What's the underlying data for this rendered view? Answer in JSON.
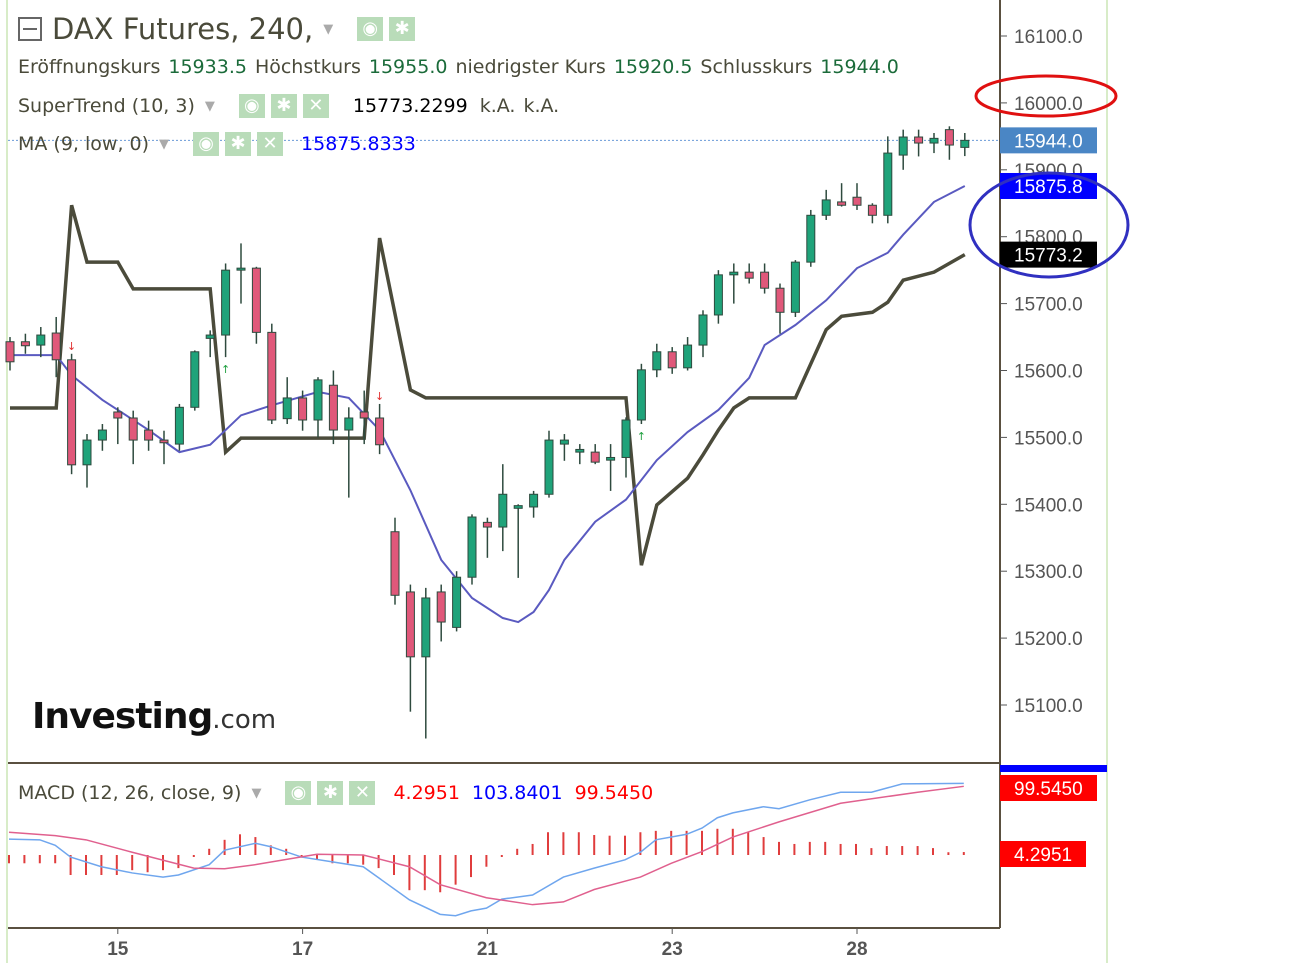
{
  "header": {
    "title": "DAX Futures, 240,",
    "ohlc": {
      "open_label": "Eröffnungskurs",
      "open": "15933.5",
      "high_label": "Höchstkurs",
      "high": "15955.0",
      "low_label": "niedrigster Kurs",
      "low": "15920.5",
      "close_label": "Schlusskurs",
      "close": "15944.0"
    },
    "supertrend": {
      "label": "SuperTrend (10, 3)",
      "value": "15773.2299",
      "v2": "k.A.",
      "v3": "k.A."
    },
    "ma": {
      "label": "MA (9, low, 0)",
      "value": "15875.8333"
    },
    "macd": {
      "label": "MACD (12, 26, close, 9)",
      "hist": "4.2951",
      "macd": "103.8401",
      "signal": "99.5450"
    }
  },
  "logo": {
    "text": "Investing",
    "suffix": ".com"
  },
  "colors": {
    "up": "#1fa37a",
    "down": "#e0587a",
    "wick": "#2e4a3e",
    "supertrend": "#4b4b3b",
    "ma": "#5a5ac0",
    "macd": "#6fa6ee",
    "signal": "#e0608e",
    "hist": "#e03c3c",
    "last_price": "#4a86c5",
    "ma_label": "#0000ff",
    "st_label": "#000000",
    "macd_label": "#ff0000",
    "circle_red": "#e01010",
    "circle_blue": "#3030c0"
  },
  "chart_data": [
    {
      "type": "candlestick",
      "ylim": [
        15020,
        16140
      ],
      "y_ticks": [
        "16100.0",
        "16000.0",
        "15900.0",
        "15800.0",
        "15700.0",
        "15600.0",
        "15500.0",
        "15400.0",
        "15300.0",
        "15200.0",
        "15100.0"
      ],
      "x_ticks": [
        {
          "label": "15",
          "index": 7
        },
        {
          "label": "17",
          "index": 19
        },
        {
          "label": "21",
          "index": 31
        },
        {
          "label": "23",
          "index": 43
        },
        {
          "label": "28",
          "index": 55
        }
      ],
      "candles": [
        [
          15643,
          15650,
          15600,
          15613
        ],
        [
          15643,
          15655,
          15625,
          15637
        ],
        [
          15638,
          15665,
          15620,
          15653
        ],
        [
          15656,
          15680,
          15590,
          15616
        ],
        [
          15616,
          15625,
          15445,
          15459
        ],
        [
          15459,
          15505,
          15425,
          15496
        ],
        [
          15496,
          15520,
          15480,
          15511
        ],
        [
          15538,
          15545,
          15490,
          15529
        ],
        [
          15529,
          15540,
          15460,
          15496
        ],
        [
          15511,
          15525,
          15480,
          15496
        ],
        [
          15496,
          15510,
          15460,
          15492
        ],
        [
          15490,
          15550,
          15480,
          15545
        ],
        [
          15545,
          15630,
          15540,
          15628
        ],
        [
          15648,
          15660,
          15620,
          15653
        ],
        [
          15653,
          15760,
          15620,
          15750
        ],
        [
          15750,
          15790,
          15700,
          15753
        ],
        [
          15753,
          15755,
          15640,
          15657
        ],
        [
          15657,
          15670,
          15520,
          15526
        ],
        [
          15528,
          15590,
          15520,
          15559
        ],
        [
          15559,
          15570,
          15510,
          15526
        ],
        [
          15526,
          15590,
          15500,
          15586
        ],
        [
          15578,
          15600,
          15490,
          15511
        ],
        [
          15511,
          15545,
          15410,
          15529
        ],
        [
          15538,
          15570,
          15490,
          15529
        ],
        [
          15529,
          15550,
          15475,
          15489
        ],
        [
          15359,
          15380,
          15250,
          15264
        ],
        [
          15269,
          15280,
          15090,
          15172
        ],
        [
          15172,
          15275,
          15050,
          15260
        ],
        [
          15269,
          15280,
          15195,
          15224
        ],
        [
          15216,
          15300,
          15210,
          15291
        ],
        [
          15291,
          15385,
          15280,
          15381
        ],
        [
          15373,
          15380,
          15320,
          15366
        ],
        [
          15366,
          15460,
          15330,
          15415
        ],
        [
          15394,
          15400,
          15290,
          15398
        ],
        [
          15396,
          15420,
          15380,
          15415
        ],
        [
          15415,
          15510,
          15410,
          15496
        ],
        [
          15490,
          15505,
          15465,
          15496
        ],
        [
          15478,
          15490,
          15460,
          15482
        ],
        [
          15478,
          15490,
          15460,
          15463
        ],
        [
          15466,
          15490,
          15420,
          15470
        ],
        [
          15470,
          15530,
          15440,
          15526
        ],
        [
          15526,
          15610,
          15520,
          15601
        ],
        [
          15601,
          15640,
          15590,
          15628
        ],
        [
          15628,
          15635,
          15595,
          15604
        ],
        [
          15604,
          15650,
          15600,
          15638
        ],
        [
          15638,
          15690,
          15620,
          15683
        ],
        [
          15683,
          15750,
          15670,
          15743
        ],
        [
          15743,
          15760,
          15700,
          15747
        ],
        [
          15747,
          15760,
          15730,
          15738
        ],
        [
          15747,
          15760,
          15715,
          15723
        ],
        [
          15723,
          15730,
          15655,
          15687
        ],
        [
          15687,
          15765,
          15680,
          15762
        ],
        [
          15762,
          15840,
          15755,
          15832
        ],
        [
          15832,
          15870,
          15825,
          15855
        ],
        [
          15852,
          15880,
          15845,
          15847
        ],
        [
          15859,
          15880,
          15840,
          15847
        ],
        [
          15847,
          15850,
          15820,
          15832
        ],
        [
          15832,
          15950,
          15820,
          15925
        ],
        [
          15922,
          15960,
          15900,
          15949
        ],
        [
          15949,
          15960,
          15920,
          15940
        ],
        [
          15940,
          15955,
          15925,
          15947
        ],
        [
          15960,
          15965,
          15915,
          15937
        ],
        [
          15933.5,
          15955,
          15920.5,
          15944
        ]
      ],
      "supertrend": [
        [
          0,
          15544
        ],
        [
          3,
          15544
        ],
        [
          4,
          15847
        ],
        [
          5,
          15762
        ],
        [
          7,
          15762
        ],
        [
          8,
          15722
        ],
        [
          13,
          15722
        ],
        [
          14,
          15478
        ],
        [
          15,
          15499
        ],
        [
          23,
          15499
        ],
        [
          24,
          15798
        ],
        [
          26,
          15571
        ],
        [
          27,
          15559
        ],
        [
          40,
          15559
        ],
        [
          41,
          15309
        ],
        [
          42,
          15399
        ],
        [
          44,
          15439
        ],
        [
          45,
          15474
        ],
        [
          46,
          15511
        ],
        [
          47,
          15544
        ],
        [
          48,
          15559
        ],
        [
          51,
          15559
        ],
        [
          53,
          15661
        ],
        [
          54,
          15681
        ],
        [
          56,
          15687
        ],
        [
          57,
          15702
        ],
        [
          58,
          15735
        ],
        [
          60,
          15747
        ],
        [
          62,
          15773.2
        ]
      ],
      "ma": [
        [
          0,
          15623
        ],
        [
          3,
          15623
        ],
        [
          4,
          15593
        ],
        [
          6,
          15556
        ],
        [
          9,
          15511
        ],
        [
          11,
          15478
        ],
        [
          13,
          15489
        ],
        [
          15,
          15533
        ],
        [
          17,
          15548
        ],
        [
          20,
          15568
        ],
        [
          22,
          15559
        ],
        [
          24,
          15511
        ],
        [
          26,
          15421
        ],
        [
          28,
          15317
        ],
        [
          30,
          15260
        ],
        [
          32,
          15230
        ],
        [
          33,
          15224
        ],
        [
          34,
          15239
        ],
        [
          35,
          15272
        ],
        [
          36,
          15317
        ],
        [
          38,
          15374
        ],
        [
          40,
          15407
        ],
        [
          42,
          15466
        ],
        [
          44,
          15508
        ],
        [
          46,
          15541
        ],
        [
          48,
          15589
        ],
        [
          49,
          15638
        ],
        [
          51,
          15668
        ],
        [
          53,
          15705
        ],
        [
          55,
          15753
        ],
        [
          57,
          15776
        ],
        [
          58,
          15803
        ],
        [
          60,
          15852
        ],
        [
          62,
          15875.8
        ]
      ],
      "signals": [
        {
          "index": 4,
          "dir": "down"
        },
        {
          "index": 14,
          "dir": "up"
        },
        {
          "index": 24,
          "dir": "down"
        },
        {
          "index": 41,
          "dir": "up"
        }
      ],
      "last_price": "15944.0",
      "ma_last": "15875.8",
      "st_last": "15773.2",
      "circled_tick": "16000.0"
    },
    {
      "type": "macd",
      "ylim": [
        -100,
        115
      ],
      "histogram": [
        -12,
        -12,
        -12,
        -12,
        -29,
        -29,
        -29,
        -29,
        -22,
        -25,
        -22,
        -19,
        0,
        9,
        22,
        30,
        26,
        14,
        9,
        0,
        -6,
        -12,
        -12,
        -14,
        -19,
        -29,
        -51,
        -51,
        -54,
        -43,
        -32,
        -17,
        0,
        9,
        16,
        33,
        33,
        33,
        29,
        28,
        28,
        33,
        35,
        35,
        35,
        35,
        38,
        38,
        33,
        26,
        19,
        16,
        19,
        19,
        16,
        16,
        10,
        13,
        13,
        13,
        10,
        4,
        4.2951
      ],
      "macd": [
        [
          0,
          23
        ],
        [
          2,
          22
        ],
        [
          3,
          14
        ],
        [
          4,
          -3
        ],
        [
          6,
          -17
        ],
        [
          8,
          -26
        ],
        [
          10,
          -32
        ],
        [
          11,
          -29
        ],
        [
          13,
          -14
        ],
        [
          14,
          7
        ],
        [
          16,
          17
        ],
        [
          17,
          12
        ],
        [
          19,
          -3
        ],
        [
          21,
          -10
        ],
        [
          23,
          -17
        ],
        [
          24,
          -33
        ],
        [
          26,
          -65
        ],
        [
          28,
          -86
        ],
        [
          29,
          -88
        ],
        [
          30,
          -81
        ],
        [
          31,
          -77
        ],
        [
          32,
          -64
        ],
        [
          34,
          -58
        ],
        [
          36,
          -32
        ],
        [
          38,
          -19
        ],
        [
          40,
          -7
        ],
        [
          41,
          4
        ],
        [
          42,
          22
        ],
        [
          44,
          30
        ],
        [
          45,
          39
        ],
        [
          46,
          54
        ],
        [
          47,
          61
        ],
        [
          49,
          70
        ],
        [
          50,
          67
        ],
        [
          52,
          80
        ],
        [
          54,
          91
        ],
        [
          56,
          91
        ],
        [
          58,
          103
        ],
        [
          62,
          103.8401
        ]
      ],
      "signal": [
        [
          0,
          33
        ],
        [
          3,
          28
        ],
        [
          5,
          22
        ],
        [
          8,
          4
        ],
        [
          12,
          -19
        ],
        [
          14,
          -20
        ],
        [
          16,
          -14
        ],
        [
          20,
          1
        ],
        [
          23,
          0
        ],
        [
          26,
          -17
        ],
        [
          28,
          -43
        ],
        [
          31,
          -62
        ],
        [
          34,
          -72
        ],
        [
          36,
          -68
        ],
        [
          38,
          -50
        ],
        [
          41,
          -32
        ],
        [
          43,
          -12
        ],
        [
          45,
          5
        ],
        [
          47,
          26
        ],
        [
          50,
          48
        ],
        [
          54,
          75
        ],
        [
          59,
          91
        ],
        [
          62,
          99.545
        ]
      ],
      "hist_label": "4.2951",
      "signal_label": "99.5450"
    }
  ]
}
